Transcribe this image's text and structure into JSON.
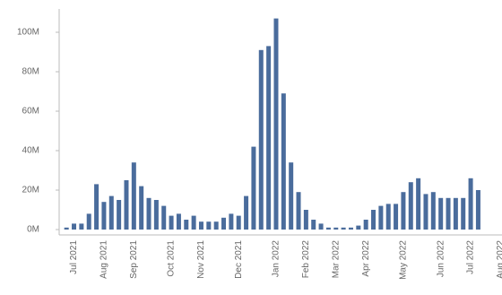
{
  "chart_data": {
    "type": "bar",
    "categories": [
      null,
      "Jul 2021",
      null,
      null,
      null,
      "Aug 2021",
      null,
      null,
      null,
      "Sep 2021",
      null,
      null,
      null,
      null,
      "Oct 2021",
      null,
      null,
      null,
      "Nov 2021",
      null,
      null,
      null,
      null,
      "Dec 2021",
      null,
      null,
      null,
      null,
      "Jan 2022",
      null,
      null,
      null,
      "Feb 2022",
      null,
      null,
      null,
      "Mar 2022",
      null,
      null,
      null,
      "Apr 2022",
      null,
      null,
      null,
      null,
      "May 2022",
      null,
      null,
      null,
      null,
      "Jun 2022",
      null,
      null,
      null,
      "Jul 2022",
      null,
      null,
      null,
      "Aug 2022"
    ],
    "values": [
      1,
      3,
      3,
      8,
      23,
      14,
      17,
      15,
      25,
      34,
      22,
      16,
      15,
      12,
      7,
      8,
      5,
      7,
      4,
      4,
      4,
      6,
      8,
      7,
      17,
      42,
      91,
      93,
      107,
      69,
      34,
      19,
      10,
      5,
      3,
      1,
      1,
      1,
      1,
      2,
      5,
      10,
      12,
      13,
      13,
      19,
      24,
      26,
      18,
      19,
      16,
      16,
      16,
      16,
      26,
      20,
      null,
      null,
      null
    ],
    "color": "#4a6c9c",
    "ylim": [
      0,
      110
    ],
    "yticks": [
      {
        "value": 0,
        "label": "0M"
      },
      {
        "value": 20,
        "label": "20M"
      },
      {
        "value": 40,
        "label": "40M"
      },
      {
        "value": 60,
        "label": "60M"
      },
      {
        "value": 80,
        "label": "80M"
      },
      {
        "value": 100,
        "label": "100M"
      }
    ],
    "grid": false
  }
}
